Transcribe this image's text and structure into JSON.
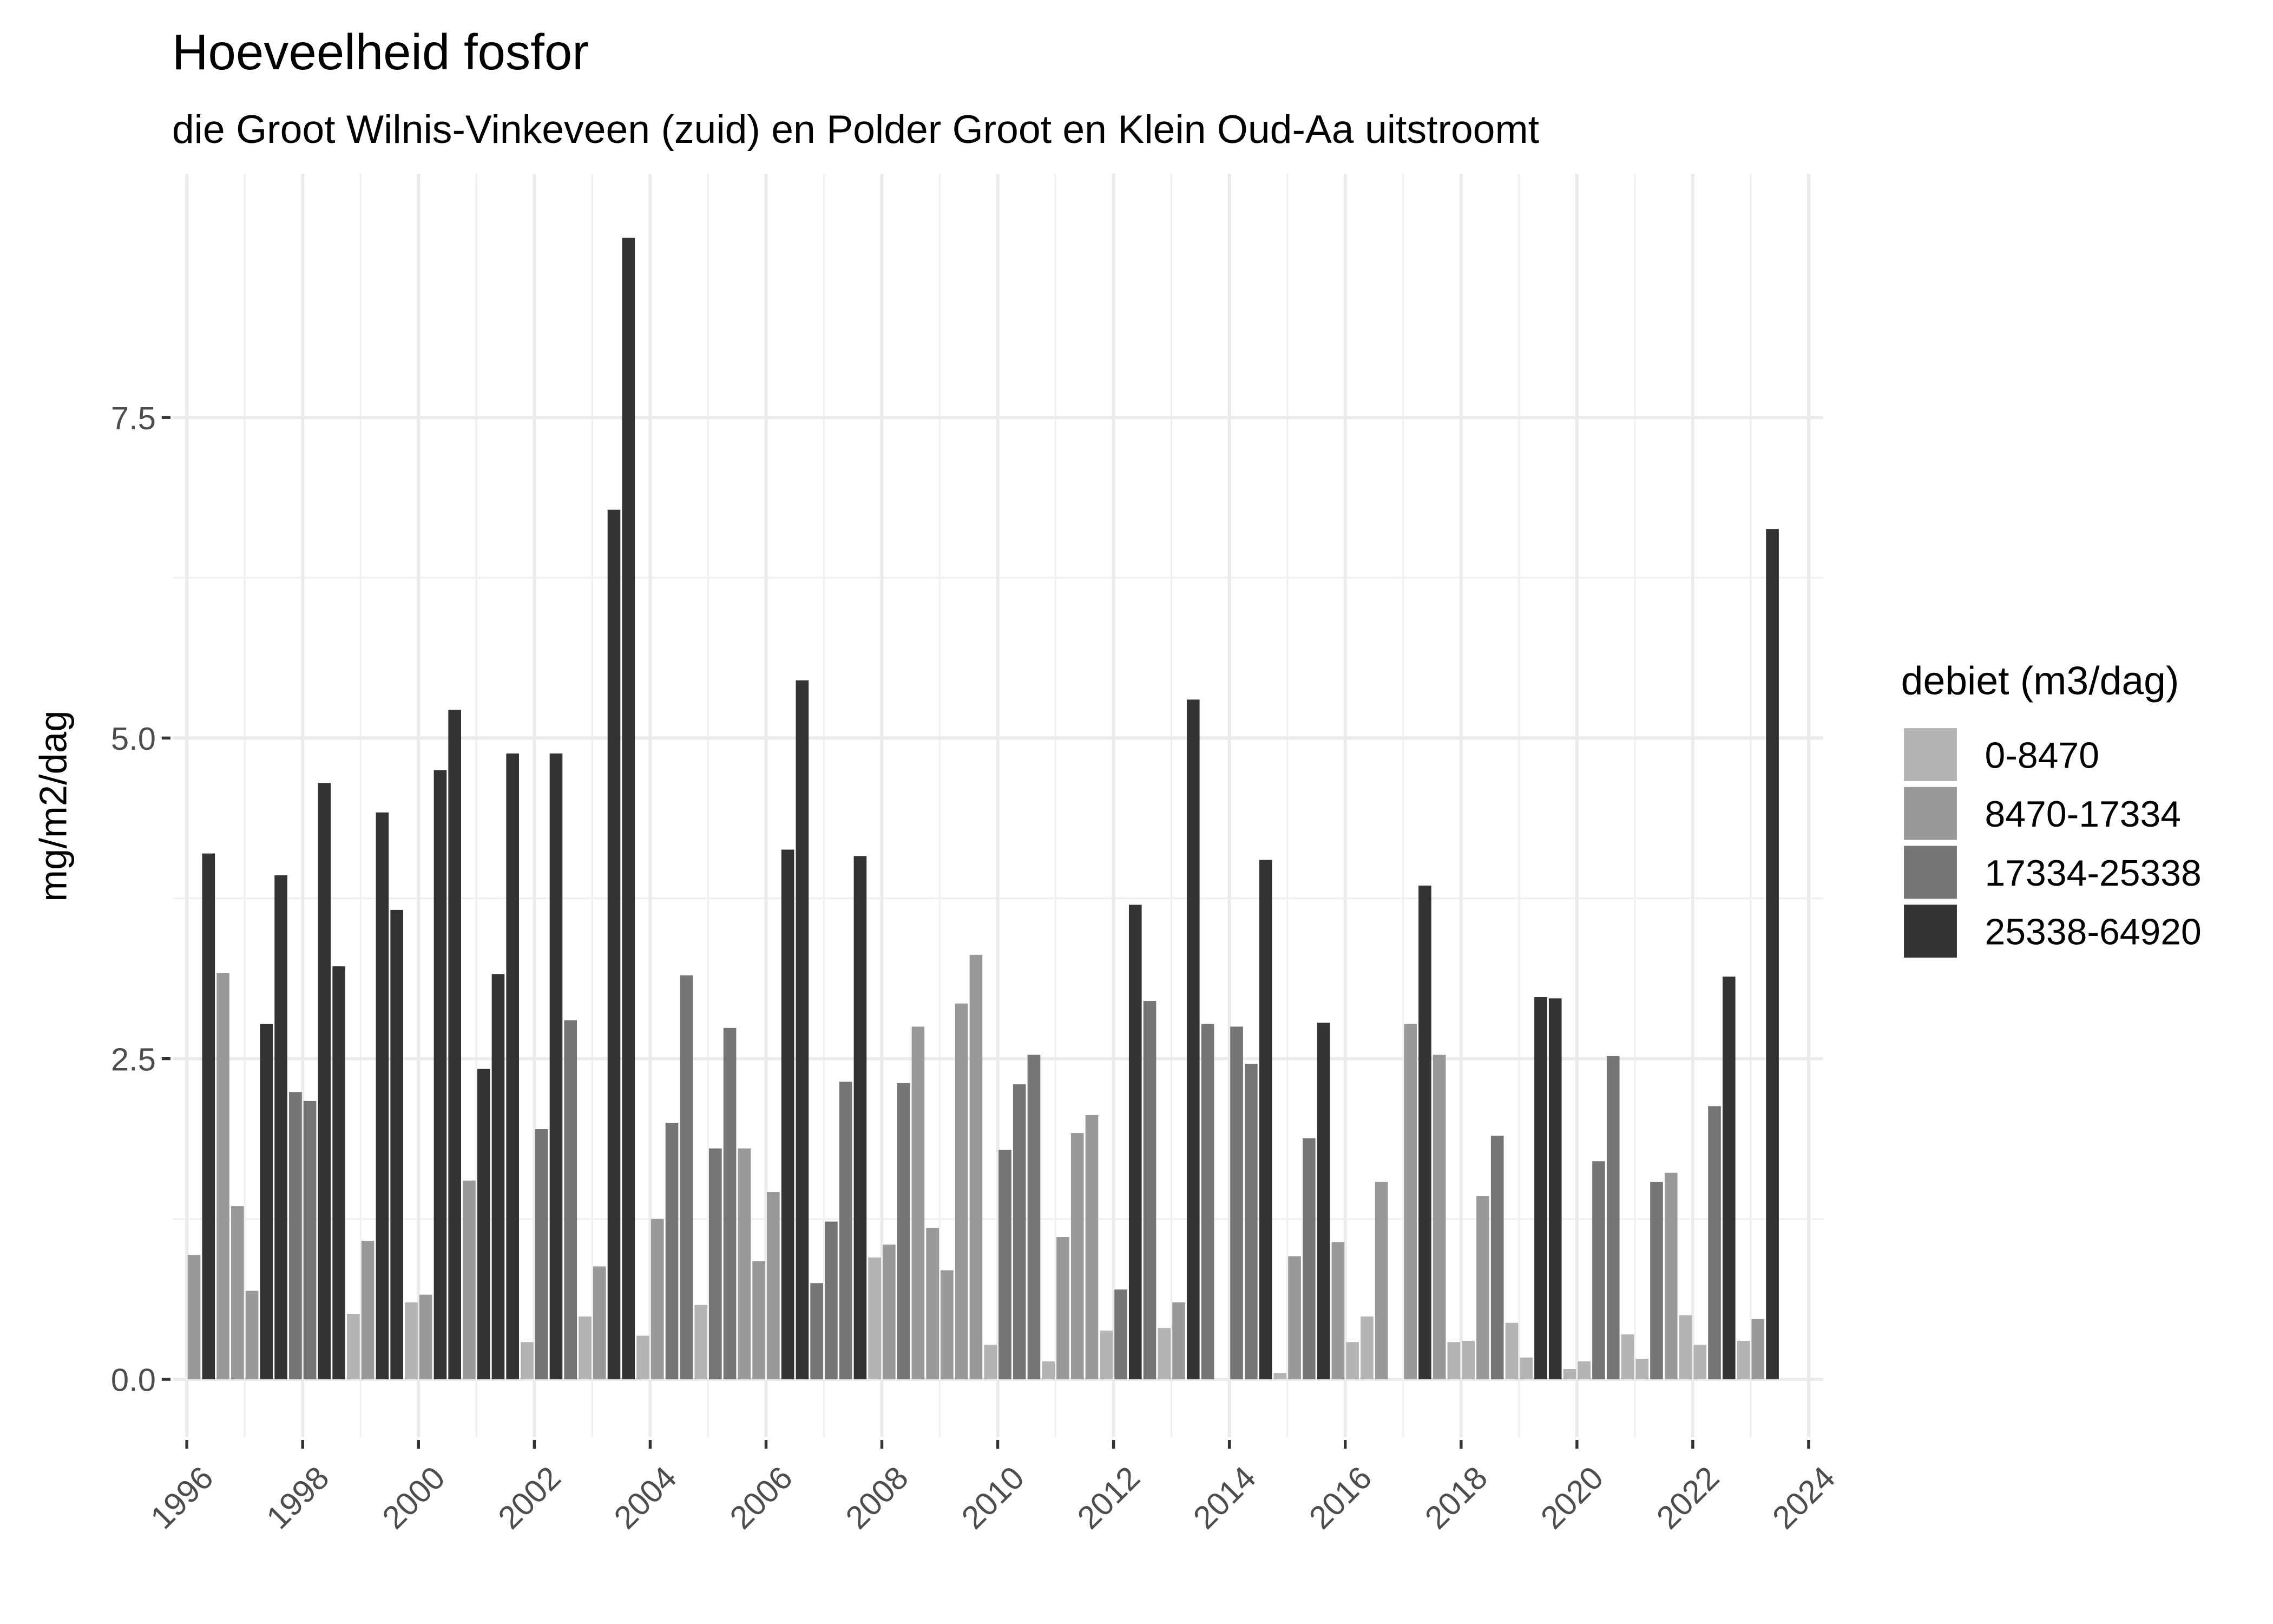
{
  "chart_data": {
    "type": "bar",
    "title": "Hoeveelheid fosfor",
    "subtitle": "die Groot Wilnis-Vinkeveen (zuid) en Polder Groot en Klein Oud-Aa uitstroomt",
    "y_label": "mg/m2/dag",
    "legend_title": "debiet (m3/dag)",
    "legend_position": "right",
    "grid": true,
    "xlim": [
      1995.77,
      2024.25
    ],
    "ylim": [
      -0.45,
      9.4
    ],
    "xticks": [
      1996,
      1998,
      2000,
      2002,
      2004,
      2006,
      2008,
      2010,
      2012,
      2014,
      2016,
      2018,
      2020,
      2022,
      2024
    ],
    "yticks": [
      {
        "value": 0,
        "label": "0.0"
      },
      2.5,
      {
        "value": 5,
        "label": "5.0"
      },
      7.5
    ],
    "series": [
      {
        "name": "0-8470",
        "color": "#b3b3b3",
        "x": [
          1998.875,
          1999.875,
          2001.875,
          2002.875,
          2003.875,
          2004.875,
          2007.875,
          2009.875,
          2010.875,
          2011.875,
          2012.875,
          2014.875,
          2016.125,
          2016.375,
          2017.875,
          2018.125,
          2018.875,
          2019.125,
          2019.875,
          2020.125,
          2020.875,
          2021.125,
          2021.875,
          2022.125,
          2022.875
        ],
        "values": [
          0.51,
          0.6,
          0.29,
          0.49,
          0.34,
          0.58,
          0.95,
          0.27,
          0.14,
          0.38,
          0.4,
          0.05,
          0.29,
          0.49,
          0.29,
          0.3,
          0.44,
          0.17,
          0.08,
          0.14,
          0.35,
          0.16,
          0.5,
          0.27,
          0.3
        ]
      },
      {
        "name": "8470-17334",
        "color": "#999999",
        "x": [
          1996.125,
          1996.625,
          1996.875,
          1997.125,
          1999.125,
          2000.125,
          2000.875,
          2003.125,
          2004.125,
          2005.625,
          2005.875,
          2006.125,
          2008.125,
          2008.625,
          2008.875,
          2009.125,
          2009.375,
          2009.625,
          2011.125,
          2011.375,
          2011.625,
          2013.125,
          2015.125,
          2015.875,
          2016.625,
          2017.125,
          2017.625,
          2018.375,
          2021.625,
          2023.125
        ],
        "values": [
          0.97,
          3.17,
          1.35,
          0.69,
          1.08,
          0.66,
          1.55,
          0.88,
          1.25,
          1.8,
          0.92,
          1.46,
          1.05,
          2.75,
          1.18,
          0.85,
          2.93,
          3.31,
          1.11,
          1.92,
          2.06,
          0.6,
          0.96,
          1.07,
          1.54,
          2.77,
          2.53,
          1.43,
          1.61,
          0.47
        ]
      },
      {
        "name": "17334-25338",
        "color": "#757575",
        "x": [
          1997.875,
          1998.125,
          2002.125,
          2002.625,
          2004.375,
          2004.625,
          2005.125,
          2005.375,
          2006.875,
          2007.125,
          2007.375,
          2008.375,
          2010.125,
          2010.375,
          2010.625,
          2012.125,
          2012.625,
          2013.625,
          2014.125,
          2014.375,
          2015.375,
          2018.625,
          2020.375,
          2020.625,
          2021.375,
          2022.375
        ],
        "values": [
          2.24,
          2.17,
          1.95,
          2.8,
          2.0,
          3.15,
          1.8,
          2.74,
          0.75,
          1.23,
          2.32,
          2.31,
          1.79,
          2.3,
          2.53,
          0.7,
          2.95,
          2.77,
          2.75,
          2.46,
          1.88,
          1.9,
          1.7,
          2.52,
          1.54,
          2.13
        ]
      },
      {
        "name": "25338-64920",
        "color": "#333333",
        "x": [
          1996.375,
          1997.375,
          1997.625,
          1998.375,
          1998.625,
          1999.375,
          1999.625,
          2000.375,
          2000.625,
          2001.125,
          2001.375,
          2001.625,
          2002.375,
          2003.375,
          2003.625,
          2006.375,
          2006.625,
          2007.625,
          2012.375,
          2013.375,
          2014.625,
          2015.625,
          2017.375,
          2019.375,
          2019.625,
          2022.625,
          2023.375
        ],
        "values": [
          4.1,
          2.77,
          3.93,
          4.65,
          3.22,
          4.42,
          3.66,
          4.75,
          5.22,
          2.42,
          3.16,
          4.88,
          4.88,
          6.78,
          8.9,
          4.13,
          5.45,
          4.08,
          3.7,
          5.3,
          4.05,
          2.78,
          3.85,
          2.98,
          2.97,
          3.14,
          6.63
        ]
      }
    ]
  }
}
